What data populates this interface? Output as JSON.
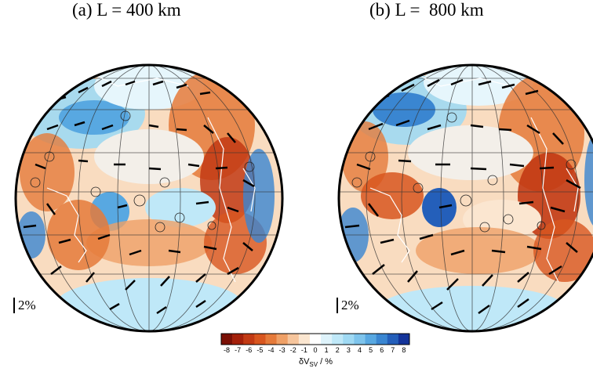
{
  "panels": [
    {
      "id": "a",
      "title": "(a) L = 400 km",
      "scale_label": "2%"
    },
    {
      "id": "b",
      "title": "(b) L =  800 km",
      "scale_label": "2%"
    }
  ],
  "colorbar": {
    "ticks": [
      "-8",
      "-7",
      "-6",
      "-5",
      "-4",
      "-3",
      "-2",
      "-1",
      "0",
      "1",
      "2",
      "3",
      "4",
      "5",
      "6",
      "7",
      "8"
    ],
    "label_main": "δV",
    "label_sub": "SV",
    "label_tail": " / %",
    "colors": [
      "#7a1005",
      "#a4200a",
      "#c23a14",
      "#d8561f",
      "#e57a3a",
      "#efa066",
      "#f6c59c",
      "#fbe6d0",
      "#ffffff",
      "#def3fb",
      "#bfe8f8",
      "#9fd9f3",
      "#7ec4ec",
      "#58a8e1",
      "#3a86d1",
      "#245fba",
      "#14349a"
    ]
  },
  "colors": {
    "land_outline": "#ffffff",
    "grid": "#333333",
    "arrow": "#000000",
    "rim": "#000000"
  }
}
